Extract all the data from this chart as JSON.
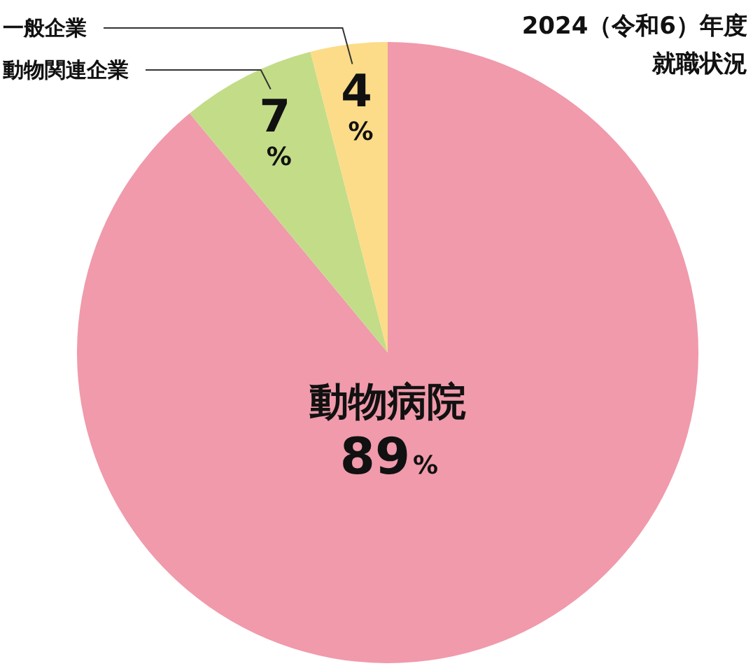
{
  "chart_data": {
    "type": "pie",
    "title": "2024（令和6）年度",
    "subtitle": "就職状況",
    "categories": [
      "動物病院",
      "動物関連企業",
      "一般企業"
    ],
    "values": [
      89,
      7,
      4
    ],
    "colors": [
      "#f09aab",
      "#c3dc88",
      "#fcdc88"
    ],
    "value_labels": [
      "89%",
      "7%",
      "4%"
    ],
    "legend": false
  }
}
